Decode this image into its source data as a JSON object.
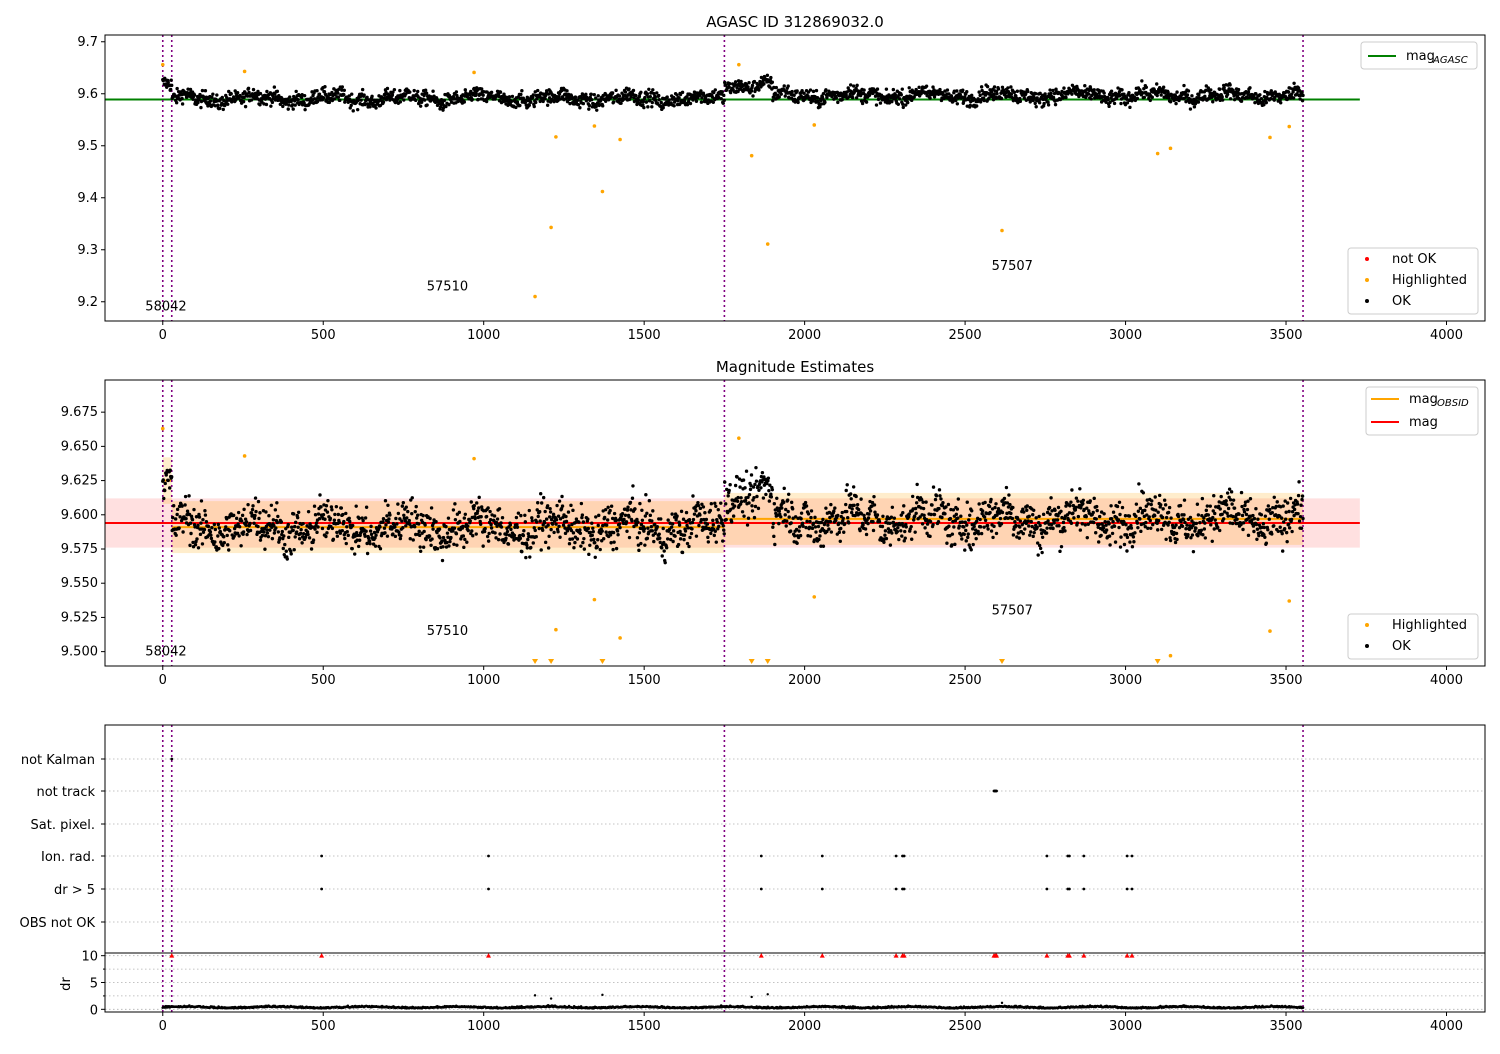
{
  "chart_data": [
    {
      "type": "scatter",
      "title": "AGASC ID 312869032.0",
      "xlim": [
        -180,
        4120
      ],
      "ylim": [
        9.163,
        9.713
      ],
      "xticks": [
        0,
        500,
        1000,
        1500,
        2000,
        2500,
        3000,
        3500,
        4000
      ],
      "yticks": [
        9.2,
        9.3,
        9.4,
        9.5,
        9.6,
        9.7
      ],
      "obs_boundaries": [
        0,
        28,
        1750,
        3553
      ],
      "obs_labels": [
        {
          "text": "58042",
          "x": 10,
          "y": 9.183
        },
        {
          "text": "57510",
          "x": 887,
          "y": 9.222
        },
        {
          "text": "57507",
          "x": 2647,
          "y": 9.261
        }
      ],
      "lines": [
        {
          "name": "mag_AGASC",
          "y": 9.589,
          "x": [
            -180,
            3730
          ],
          "color": "#008000"
        }
      ],
      "ok_points": {
        "x_range": [
          0,
          3553
        ],
        "count": 2300,
        "base": 9.591,
        "spread": 0.013,
        "segments": [
          {
            "x": [
              0,
              28
            ],
            "offset": 0.025
          },
          {
            "x": [
              28,
              1750
            ],
            "offset": 0.0
          },
          {
            "x": [
              1750,
              1900
            ],
            "offset": 0.026
          },
          {
            "x": [
              1900,
              3553
            ],
            "offset": 0.006
          }
        ]
      },
      "highlighted": {
        "x": [
          0,
          255,
          970,
          1160,
          1210,
          1225,
          1345,
          1370,
          1425,
          1795,
          1835,
          1885,
          2030,
          2615,
          3100,
          3140,
          3450,
          3510
        ],
        "y": [
          9.656,
          9.643,
          9.641,
          9.21,
          9.343,
          9.517,
          9.538,
          9.412,
          9.512,
          9.656,
          9.481,
          9.311,
          9.54,
          9.337,
          9.485,
          9.495,
          9.516,
          9.537
        ]
      },
      "legend_lines": [
        {
          "name": "mag",
          "sub": "AGASC",
          "color": "#008000"
        }
      ],
      "legend_markers": [
        {
          "name": "not OK",
          "color": "#ff0000"
        },
        {
          "name": "Highlighted",
          "color": "#ffa500"
        },
        {
          "name": "OK",
          "color": "#000000"
        }
      ]
    },
    {
      "type": "scatter",
      "title": "Magnitude Estimates",
      "xlim": [
        -180,
        4120
      ],
      "ylim": [
        9.4895,
        9.6985
      ],
      "xticks": [
        0,
        500,
        1000,
        1500,
        2000,
        2500,
        3000,
        3500,
        4000
      ],
      "yticks": [
        9.5,
        9.525,
        9.55,
        9.575,
        9.6,
        9.625,
        9.65,
        9.675
      ],
      "ytick_labels": [
        "9.500",
        "9.525",
        "9.550",
        "9.575",
        "9.600",
        "9.625",
        "9.650",
        "9.675"
      ],
      "obs_boundaries": [
        0,
        28,
        1750,
        3553
      ],
      "obs_labels": [
        {
          "text": "58042",
          "x": 10,
          "y": 9.497
        },
        {
          "text": "57510",
          "x": 887,
          "y": 9.512
        },
        {
          "text": "57507",
          "x": 2647,
          "y": 9.527
        }
      ],
      "mag": {
        "y": 9.594,
        "band": [
          9.576,
          9.612
        ],
        "x": [
          -180,
          3730
        ],
        "color": "#ff0000"
      },
      "mag_obsid": [
        {
          "x": [
            0,
            28
          ],
          "y": 9.625,
          "band": [
            9.608,
            9.642
          ]
        },
        {
          "x": [
            28,
            1750
          ],
          "y": 9.591,
          "band": [
            9.572,
            9.61
          ]
        },
        {
          "x": [
            1750,
            3553
          ],
          "y": 9.597,
          "band": [
            9.578,
            9.616
          ]
        }
      ],
      "ok_points": {
        "x_range": [
          0,
          3553
        ],
        "count": 2300,
        "base": 9.591,
        "spread": 0.014,
        "segments": [
          {
            "x": [
              0,
              28
            ],
            "offset": 0.03
          },
          {
            "x": [
              28,
              1750
            ],
            "offset": 0.0
          },
          {
            "x": [
              1750,
              1900
            ],
            "offset": 0.026
          },
          {
            "x": [
              1900,
              3553
            ],
            "offset": 0.006
          }
        ]
      },
      "highlighted": {
        "x": [
          0,
          255,
          970,
          1225,
          1345,
          1425,
          1795,
          2030,
          3140,
          3450,
          3510
        ],
        "y": [
          9.663,
          9.643,
          9.641,
          9.516,
          9.538,
          9.51,
          9.656,
          9.54,
          9.497,
          9.515,
          9.537
        ]
      },
      "below_range_x": [
        1160,
        1210,
        1370,
        1835,
        1885,
        2615,
        3100
      ],
      "legend_lines": [
        {
          "name": "mag",
          "sub": "OBSID",
          "color": "#ffa500"
        },
        {
          "name": "mag",
          "sub": "",
          "color": "#ff0000"
        }
      ],
      "legend_markers": [
        {
          "name": "Highlighted",
          "color": "#ffa500"
        },
        {
          "name": "OK",
          "color": "#000000"
        }
      ]
    },
    {
      "type": "scatter",
      "xlim": [
        -180,
        4120
      ],
      "xticks": [
        0,
        500,
        1000,
        1500,
        2000,
        2500,
        3000,
        3500,
        4000
      ],
      "flags": [
        "not Kalman",
        "not track",
        "Sat. pixel.",
        "Ion. rad.",
        "dr > 5",
        "OBS not OK"
      ],
      "obs_boundaries": [
        0,
        28,
        1750,
        3553
      ],
      "flag_points": {
        "not Kalman": [
          28
        ],
        "not track": [
          2590,
          2592,
          2594,
          2596,
          2598
        ],
        "Sat. pixel.": [],
        "Ion. rad.": [
          495,
          1015,
          1865,
          2055,
          2285,
          2305,
          2310,
          2755,
          2820,
          2825,
          2870,
          3005,
          3020
        ],
        "dr > 5": [
          495,
          1015,
          1865,
          2055,
          2285,
          2305,
          2310,
          2755,
          2820,
          2825,
          2870,
          3005,
          3020
        ],
        "OBS not OK": []
      },
      "dr": {
        "ylabel": "dr",
        "ylim": [
          -0.5,
          10.5
        ],
        "yticks": [
          0,
          5,
          10
        ],
        "minor_yticks": [
          2.5,
          7.5
        ],
        "base": 0.3,
        "spread": 0.2,
        "outliers": {
          "x": [
            28,
            495,
            1015,
            1865,
            2055,
            2285,
            2305,
            2310,
            2590,
            2594,
            2598,
            2755,
            2820,
            2825,
            2870,
            3005,
            3020
          ],
          "y": [
            10,
            10,
            10,
            10,
            10,
            10,
            10,
            10,
            10,
            10,
            10,
            10,
            10,
            10,
            10,
            10,
            10
          ]
        },
        "moderate": {
          "x": [
            1160,
            1210,
            1370,
            1835,
            1885,
            2615
          ],
          "y": [
            2.6,
            2.0,
            2.7,
            2.3,
            2.8,
            1.2
          ]
        }
      }
    }
  ]
}
